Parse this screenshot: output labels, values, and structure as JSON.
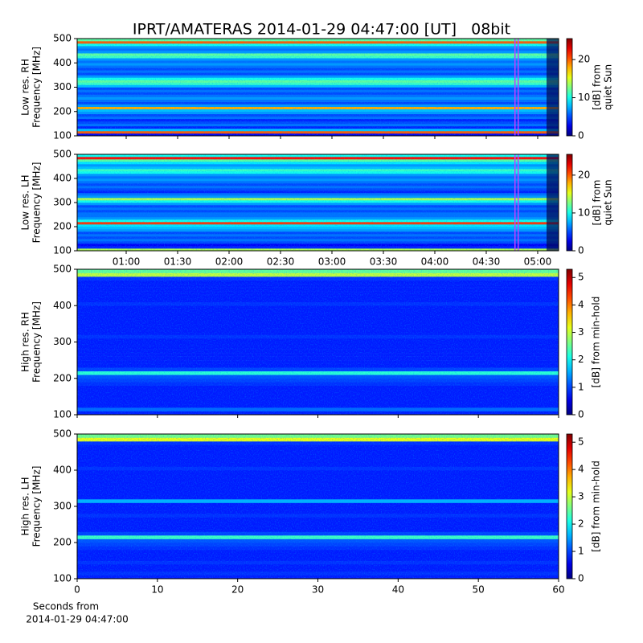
{
  "chart_data": [
    {
      "type": "heatmap",
      "title": "IPRT/AMATERAS 2014-01-29 04:47:00 [UT]   08bit",
      "ylabel": [
        "Low res. RH",
        "Frequency [MHz]"
      ],
      "ylim": [
        100,
        500
      ],
      "yticks": [
        100,
        200,
        300,
        400,
        500
      ],
      "xlim": [
        31.4,
        312.2
      ],
      "xticks": [
        60,
        90,
        120,
        150,
        180,
        210,
        240,
        270,
        300
      ],
      "show_xticklabels": false,
      "clim": [
        0,
        25.5
      ],
      "cticks": [
        0,
        10,
        20
      ],
      "clabel": [
        "[dB] from",
        "quiet Sun"
      ],
      "colormap": "jet",
      "y": [
        105,
        115,
        125,
        135,
        145,
        155,
        165,
        175,
        185,
        195,
        205,
        215,
        225,
        235,
        245,
        255,
        265,
        275,
        285,
        295,
        305,
        315,
        325,
        335,
        345,
        355,
        365,
        375,
        385,
        395,
        405,
        415,
        425,
        435,
        445,
        455,
        465,
        475,
        485,
        495
      ],
      "values": [
        3,
        20,
        8,
        4,
        6,
        5,
        4,
        6,
        5,
        7,
        8,
        18,
        7,
        5,
        6,
        7,
        6,
        5,
        6,
        5,
        8,
        11,
        12,
        10,
        7,
        5,
        6,
        5,
        6,
        7,
        6,
        7,
        11,
        12,
        7,
        6,
        7,
        10,
        20,
        12
      ]
    },
    {
      "type": "heatmap",
      "ylabel": [
        "Low res. LH",
        "Frequency [MHz]"
      ],
      "ylim": [
        100,
        500
      ],
      "yticks": [
        100,
        200,
        300,
        400,
        500
      ],
      "xlim": [
        31.4,
        312.2
      ],
      "xticks": [
        {
          "value": 60,
          "label": "01:00"
        },
        {
          "value": 90,
          "label": "01:30"
        },
        {
          "value": 120,
          "label": "02:00"
        },
        {
          "value": 150,
          "label": "02:30"
        },
        {
          "value": 180,
          "label": "03:00"
        },
        {
          "value": 210,
          "label": "03:30"
        },
        {
          "value": 240,
          "label": "04:00"
        },
        {
          "value": 270,
          "label": "04:30"
        },
        {
          "value": 300,
          "label": "05:00"
        }
      ],
      "show_xticklabels": true,
      "clim": [
        0,
        25.5
      ],
      "cticks": [
        0,
        10,
        20
      ],
      "clabel": [
        "[dB] from",
        "quiet Sun"
      ],
      "colormap": "jet",
      "y": [
        105,
        115,
        125,
        135,
        145,
        155,
        165,
        175,
        185,
        195,
        205,
        215,
        225,
        235,
        245,
        255,
        265,
        275,
        285,
        295,
        305,
        315,
        325,
        335,
        345,
        355,
        365,
        375,
        385,
        395,
        405,
        415,
        425,
        435,
        445,
        455,
        465,
        475,
        485,
        495
      ],
      "values": [
        14,
        4,
        3,
        5,
        6,
        5,
        6,
        5,
        7,
        8,
        9,
        21,
        10,
        7,
        6,
        6,
        5,
        6,
        5,
        7,
        10,
        14,
        7,
        6,
        4,
        5,
        6,
        5,
        6,
        7,
        6,
        7,
        10,
        11,
        8,
        7,
        9,
        12,
        22,
        10
      ]
    },
    {
      "type": "heatmap",
      "ylabel": [
        "High res. RH",
        "Frequency [MHz]"
      ],
      "ylim": [
        100,
        500
      ],
      "yticks": [
        100,
        200,
        300,
        400,
        500
      ],
      "xlim": [
        0,
        60
      ],
      "xticks": [
        0,
        10,
        20,
        30,
        40,
        50,
        60
      ],
      "show_xticklabels": false,
      "clim": [
        0,
        5.3
      ],
      "cticks": [
        0,
        1,
        2,
        3,
        4,
        5
      ],
      "clabel": [
        "[dB] from min-hold"
      ],
      "colormap": "jet",
      "y": [
        105,
        115,
        125,
        135,
        145,
        155,
        165,
        175,
        185,
        195,
        205,
        215,
        225,
        235,
        245,
        255,
        265,
        275,
        285,
        295,
        305,
        315,
        325,
        335,
        345,
        355,
        365,
        375,
        385,
        395,
        405,
        415,
        425,
        435,
        445,
        455,
        465,
        475,
        485,
        495
      ],
      "values": [
        0.8,
        1.2,
        0.8,
        0.8,
        0.8,
        0.8,
        0.8,
        0.8,
        0.9,
        1,
        1.1,
        2.2,
        1,
        0.8,
        0.8,
        0.8,
        0.8,
        0.8,
        0.8,
        0.8,
        0.8,
        0.9,
        0.8,
        0.8,
        0.8,
        0.8,
        0.8,
        0.8,
        0.8,
        0.8,
        0.9,
        0.8,
        0.8,
        0.8,
        0.8,
        0.8,
        0.8,
        0.9,
        3,
        2.5
      ]
    },
    {
      "type": "heatmap",
      "ylabel": [
        "High res. LH",
        "Frequency [MHz]"
      ],
      "ylim": [
        100,
        500
      ],
      "yticks": [
        100,
        200,
        300,
        400,
        500
      ],
      "xlim": [
        0,
        60
      ],
      "xticks": [
        0,
        10,
        20,
        30,
        40,
        50,
        60
      ],
      "show_xticklabels": true,
      "xlabel": [
        "Seconds from",
        "2014-01-29 04:47:00"
      ],
      "clim": [
        0,
        5.3
      ],
      "cticks": [
        0,
        1,
        2,
        3,
        4,
        5
      ],
      "clabel": [
        "[dB] from min-hold"
      ],
      "colormap": "jet",
      "y": [
        105,
        115,
        125,
        135,
        145,
        155,
        165,
        175,
        185,
        195,
        205,
        215,
        225,
        235,
        245,
        255,
        265,
        275,
        285,
        295,
        305,
        315,
        325,
        335,
        345,
        355,
        365,
        375,
        385,
        395,
        405,
        415,
        425,
        435,
        445,
        455,
        465,
        475,
        485,
        495
      ],
      "values": [
        0.8,
        0.9,
        0.8,
        0.8,
        0.9,
        0.8,
        0.8,
        0.8,
        0.9,
        1,
        1.1,
        2.3,
        1,
        0.8,
        0.8,
        0.8,
        0.8,
        0.9,
        0.8,
        0.8,
        0.8,
        1.6,
        0.8,
        0.8,
        0.8,
        0.8,
        0.8,
        0.8,
        0.8,
        0.8,
        0.9,
        0.8,
        0.8,
        0.8,
        0.8,
        0.8,
        0.8,
        0.9,
        3.2,
        2.6
      ]
    }
  ]
}
